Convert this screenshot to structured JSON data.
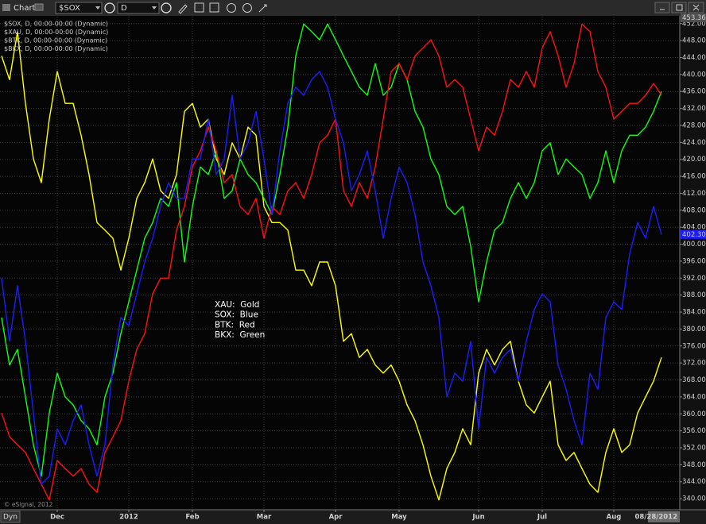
{
  "window": {
    "title": "Chart",
    "symbol": "$SOX",
    "interval": "D",
    "footer": "Dyn"
  },
  "chart_data": {
    "type": "line",
    "categories": [
      null,
      null,
      null,
      null,
      null,
      null,
      null,
      "Dec",
      null,
      null,
      null,
      null,
      null,
      null,
      null,
      null,
      "2012",
      null,
      null,
      null,
      null,
      null,
      null,
      null,
      "Feb",
      null,
      null,
      null,
      null,
      null,
      null,
      null,
      null,
      "Mar",
      null,
      null,
      null,
      null,
      null,
      null,
      null,
      null,
      "Apr",
      null,
      null,
      null,
      null,
      null,
      null,
      null,
      "May",
      null,
      null,
      null,
      null,
      null,
      null,
      null,
      null,
      null,
      "Jun",
      null,
      null,
      null,
      null,
      null,
      null,
      null,
      "Jul",
      null,
      null,
      null,
      null,
      null,
      null,
      null,
      null,
      "Aug",
      null,
      null,
      null,
      null,
      null,
      "08/28/2012"
    ],
    "series": [
      {
        "name": "$SOX, D, 00:00-00:00 (Dynamic)",
        "color": "#1c1cff",
        "values": [
          392.0,
          377.1,
          390.2,
          377.1,
          360.2,
          343.4,
          345.3,
          356.5,
          352.7,
          358.4,
          362.1,
          352.7,
          345.3,
          352.7,
          371.5,
          382.7,
          380.8,
          388.3,
          395.8,
          401.4,
          408.9,
          414.5,
          410.8,
          410.8,
          420.1,
          420.1,
          429.5,
          416.4,
          420.1,
          435.1,
          420.1,
          423.9,
          431.3,
          420.1,
          407.0,
          422.0,
          433.2,
          437.0,
          435.1,
          438.8,
          440.7,
          437.0,
          429.5,
          423.9,
          412.6,
          416.4,
          422.0,
          412.6,
          401.4,
          410.8,
          418.2,
          414.5,
          407.0,
          395.8,
          390.2,
          382.7,
          364.0,
          369.6,
          367.7,
          377.1,
          356.5,
          373.3,
          369.6,
          373.3,
          375.2,
          367.7,
          377.1,
          384.6,
          388.3,
          386.4,
          371.5,
          365.8,
          358.4,
          352.7,
          369.6,
          365.8,
          382.7,
          386.4,
          384.6,
          397.7,
          405.1,
          401.4,
          408.9,
          402.3
        ]
      },
      {
        "name": "$XAU, D, 00:00-00:00 (Dynamic)",
        "color": "#ffff00",
        "values": [
          444.4,
          438.8,
          450.1,
          433.2,
          420.1,
          414.5,
          429.5,
          440.7,
          433.2,
          433.2,
          425.7,
          416.4,
          405.1,
          403.3,
          401.4,
          393.9,
          401.4,
          410.8,
          414.5,
          420.1,
          412.6,
          410.8,
          416.4,
          431.3,
          433.2,
          427.6,
          429.5,
          420.1,
          416.4,
          423.9,
          420.1,
          427.6,
          425.7,
          408.9,
          405.1,
          405.1,
          403.3,
          393.9,
          393.9,
          390.2,
          395.8,
          395.8,
          390.2,
          377.1,
          378.9,
          373.3,
          375.2,
          371.5,
          369.6,
          371.5,
          367.7,
          362.1,
          358.4,
          352.7,
          345.3,
          339.7,
          347.1,
          350.9,
          356.5,
          352.7,
          369.6,
          375.2,
          371.5,
          375.2,
          377.1,
          367.7,
          362.1,
          360.2,
          364.0,
          367.7,
          352.7,
          349.0,
          350.9,
          347.1,
          343.4,
          341.5,
          350.9,
          356.5,
          350.9,
          352.7,
          360.2,
          364.0,
          367.7,
          373.3
        ]
      },
      {
        "name": "$BTK, D, 00:00-00:00 (Dynamic)",
        "color": "#ff1010",
        "values": [
          360.2,
          354.6,
          352.7,
          350.9,
          347.1,
          343.4,
          339.7,
          349.0,
          347.1,
          345.3,
          347.1,
          343.4,
          341.5,
          350.9,
          354.6,
          358.4,
          367.7,
          375.2,
          378.9,
          388.3,
          392.0,
          392.0,
          403.3,
          408.9,
          418.2,
          422.0,
          427.6,
          422.0,
          414.5,
          416.4,
          408.9,
          407.0,
          410.8,
          401.4,
          408.9,
          407.0,
          412.6,
          414.5,
          410.8,
          416.4,
          423.9,
          425.7,
          429.5,
          412.6,
          408.9,
          414.5,
          410.8,
          418.2,
          429.5,
          440.7,
          442.6,
          438.8,
          444.4,
          446.3,
          448.2,
          444.4,
          437.0,
          438.8,
          437.0,
          429.5,
          422.0,
          427.6,
          425.7,
          431.3,
          438.8,
          437.0,
          440.7,
          437.0,
          446.3,
          450.1,
          444.4,
          437.0,
          442.6,
          451.9,
          450.1,
          440.7,
          437.0,
          429.5,
          431.3,
          433.2,
          433.2,
          435.1,
          437.9,
          435.1
        ]
      },
      {
        "name": "$BKX, D, 00:00-00:00 (Dynamic)",
        "color": "#10ff10",
        "values": [
          382.7,
          371.5,
          375.2,
          364.0,
          352.7,
          345.3,
          360.2,
          369.6,
          364.0,
          362.1,
          358.4,
          356.5,
          352.7,
          364.0,
          369.6,
          378.9,
          386.4,
          393.9,
          401.4,
          405.1,
          410.8,
          408.9,
          414.5,
          395.8,
          408.9,
          418.2,
          416.4,
          422.0,
          410.8,
          412.6,
          420.1,
          416.4,
          414.5,
          410.8,
          407.0,
          416.4,
          427.6,
          444.4,
          451.9,
          450.1,
          448.2,
          451.9,
          448.2,
          444.4,
          440.7,
          437.0,
          435.1,
          442.6,
          435.1,
          437.0,
          442.6,
          438.8,
          431.3,
          427.6,
          420.1,
          416.4,
          408.9,
          407.0,
          408.9,
          399.5,
          386.4,
          395.8,
          403.3,
          405.1,
          410.8,
          414.5,
          410.8,
          414.5,
          422.0,
          423.9,
          416.4,
          420.1,
          418.2,
          416.4,
          410.8,
          414.5,
          422.0,
          414.5,
          422.0,
          425.7,
          425.7,
          427.6,
          431.3,
          436.0
        ]
      }
    ],
    "ylim": [
      337.4,
      454.2
    ],
    "yticks": [
      {
        "value": 340,
        "label": "340.00"
      },
      {
        "value": 344,
        "label": "344.00"
      },
      {
        "value": 348,
        "label": "348.00"
      },
      {
        "value": 352,
        "label": "352.00"
      },
      {
        "value": 356,
        "label": "356.00"
      },
      {
        "value": 360,
        "label": "360.00"
      },
      {
        "value": 364,
        "label": "364.00"
      },
      {
        "value": 368,
        "label": "368.00"
      },
      {
        "value": 372,
        "label": "372.00"
      },
      {
        "value": 376,
        "label": "376.00"
      },
      {
        "value": 380,
        "label": "380.00"
      },
      {
        "value": 384,
        "label": "384.00"
      },
      {
        "value": 388,
        "label": "388.00"
      },
      {
        "value": 392,
        "label": "392.00"
      },
      {
        "value": 396,
        "label": "396.00"
      },
      {
        "value": 400,
        "label": "400.00"
      },
      {
        "value": 404,
        "label": "404.00"
      },
      {
        "value": 408,
        "label": "408.00"
      },
      {
        "value": 412,
        "label": "412.00"
      },
      {
        "value": 416,
        "label": "416.00"
      },
      {
        "value": 420,
        "label": "420.00"
      },
      {
        "value": 424,
        "label": "424.00"
      },
      {
        "value": 428,
        "label": "428.00"
      },
      {
        "value": 432,
        "label": "432.00"
      },
      {
        "value": 436,
        "label": "436.00"
      },
      {
        "value": 440,
        "label": "440.00"
      },
      {
        "value": 444,
        "label": "444.00"
      },
      {
        "value": 448,
        "label": "448.00"
      },
      {
        "value": 452,
        "label": "452.00"
      }
    ],
    "grid": true,
    "legend_corner": "top-left",
    "annotations": [
      "XAU:  Gold",
      "SOX:  Blue",
      "BTK:  Red",
      "BKX:  Green"
    ],
    "price_tags": [
      {
        "value": 453.36,
        "label": "453.36",
        "color": "#505050"
      },
      {
        "value": 402.3,
        "label": "402.30",
        "color": "#1c1cff"
      }
    ],
    "copyright": "© eSignal, 2012"
  }
}
